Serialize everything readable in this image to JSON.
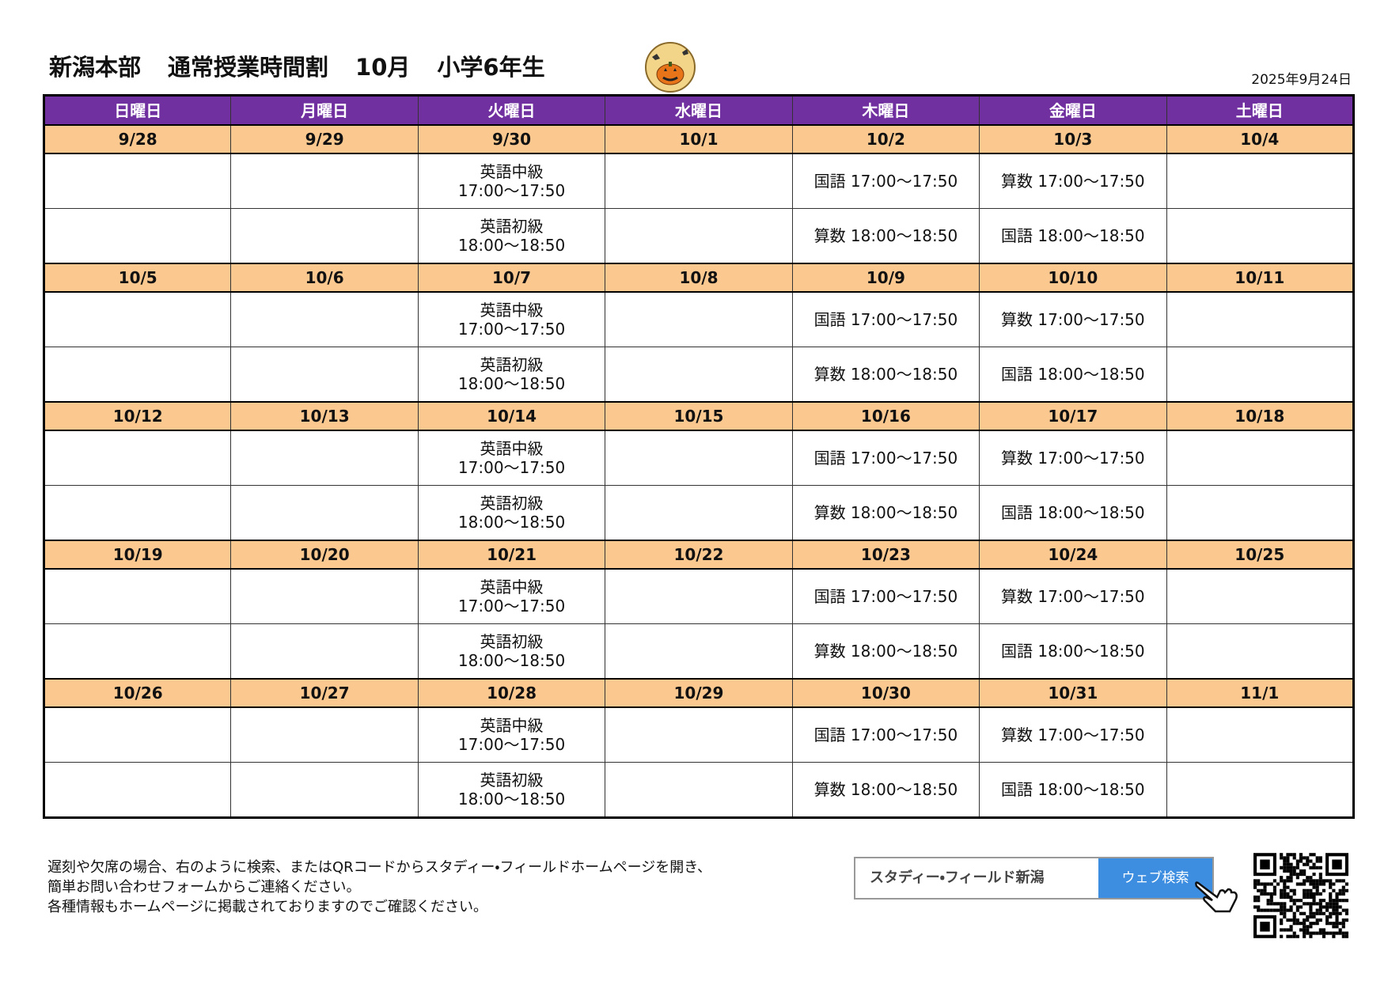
{
  "header": {
    "branch": "新潟本部",
    "title": "通常授業時間割",
    "month": "10月",
    "grade": "小学6年生",
    "date": "2025年9月24日"
  },
  "weekdays": [
    "日曜日",
    "月曜日",
    "火曜日",
    "水曜日",
    "木曜日",
    "金曜日",
    "土曜日"
  ],
  "weeks": [
    {
      "dates": [
        "9/28",
        "9/29",
        "9/30",
        "10/1",
        "10/2",
        "10/3",
        "10/4"
      ],
      "cells": [
        null,
        null,
        [
          "英語中級\n17:00～17:50",
          "英語初級\n18:00～18:50"
        ],
        null,
        [
          "国語 17:00～17:50",
          "算数 18:00～18:50"
        ],
        [
          "算数 17:00～17:50",
          "国語 18:00～18:50"
        ],
        null
      ]
    },
    {
      "dates": [
        "10/5",
        "10/6",
        "10/7",
        "10/8",
        "10/9",
        "10/10",
        "10/11"
      ],
      "cells": [
        null,
        null,
        [
          "英語中級\n17:00～17:50",
          "英語初級\n18:00～18:50"
        ],
        null,
        [
          "国語 17:00～17:50",
          "算数 18:00～18:50"
        ],
        [
          "算数 17:00～17:50",
          "国語 18:00～18:50"
        ],
        null
      ]
    },
    {
      "dates": [
        "10/12",
        "10/13",
        "10/14",
        "10/15",
        "10/16",
        "10/17",
        "10/18"
      ],
      "cells": [
        null,
        null,
        [
          "英語中級\n17:00～17:50",
          "英語初級\n18:00～18:50"
        ],
        null,
        [
          "国語 17:00～17:50",
          "算数 18:00～18:50"
        ],
        [
          "算数 17:00～17:50",
          "国語 18:00～18:50"
        ],
        null
      ]
    },
    {
      "dates": [
        "10/19",
        "10/20",
        "10/21",
        "10/22",
        "10/23",
        "10/24",
        "10/25"
      ],
      "cells": [
        null,
        null,
        [
          "英語中級\n17:00～17:50",
          "英語初級\n18:00～18:50"
        ],
        null,
        [
          "国語 17:00～17:50",
          "算数 18:00～18:50"
        ],
        [
          "算数 17:00～17:50",
          "国語 18:00～18:50"
        ],
        null
      ]
    },
    {
      "dates": [
        "10/26",
        "10/27",
        "10/28",
        "10/29",
        "10/30",
        "10/31",
        "11/1"
      ],
      "cells": [
        null,
        null,
        [
          "英語中級\n17:00～17:50",
          "英語初級\n18:00～18:50"
        ],
        null,
        [
          "国語 17:00～17:50",
          "算数 18:00～18:50"
        ],
        [
          "算数 17:00～17:50",
          "国語 18:00～18:50"
        ],
        null
      ]
    }
  ],
  "footer": {
    "notes": [
      "遅刻や欠席の場合、右のように検索、またはQRコードからスタディー・フィールドホームページを開き、",
      "簡単お問い合わせフォームからご連絡ください。",
      "各種情報もホームページに掲載されておりますのでご確認ください。"
    ],
    "search_box": "スタディー・フィールド新潟",
    "search_button": "ウェブ検索"
  }
}
